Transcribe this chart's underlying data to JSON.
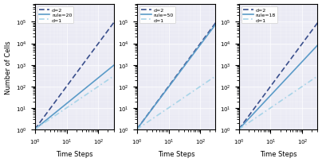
{
  "rules": [
    20,
    50,
    18
  ],
  "n_steps": 300,
  "color_d2": "#3A4F8C",
  "color_rule": "#5B9BC8",
  "color_d1": "#A8D4E8",
  "lw_d2": 1.2,
  "lw_rule": 1.2,
  "lw_d1": 1.2,
  "xlim": [
    1,
    300
  ],
  "ylim": [
    1,
    700000
  ],
  "ylim2": [
    1,
    700000
  ],
  "xlabel": "Time Steps",
  "ylabel": "Number of Cells",
  "rule_slopes": [
    1.2,
    1.97,
    1.58
  ],
  "background": "#eaeaf4",
  "figsize": [
    4.04,
    2.05
  ],
  "dpi": 100
}
